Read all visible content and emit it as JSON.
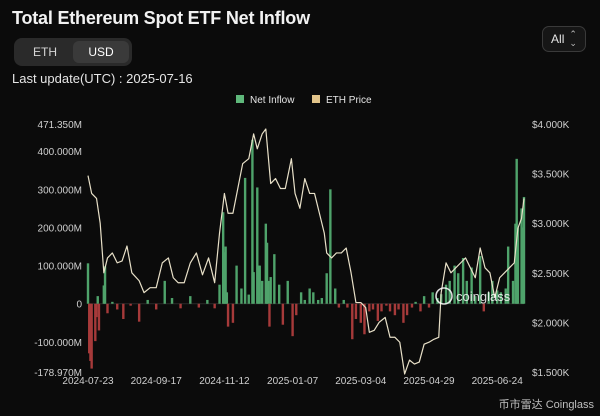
{
  "header": {
    "title": "Total Ethereum Spot ETF Net Inflow",
    "unit_options": [
      "ETH",
      "USD"
    ],
    "active_unit": "USD",
    "range_label": "All",
    "last_update": "Last update(UTC) : 2025-07-16"
  },
  "watermark": {
    "brand": "coinglass",
    "footer": "币市雷达 Coinglass"
  },
  "colors": {
    "inflow": "#4fa36b",
    "outflow": "#a63a3a",
    "price": "#e8e0c8",
    "legend_inflow": "#5fb87b",
    "legend_price": "#e2c48a",
    "axis_text": "#cfcfcf"
  },
  "chart_data": {
    "type": "bar",
    "title": "Total Ethereum Spot ETF Net Inflow",
    "legend": [
      "Net Inflow",
      "ETH Price"
    ],
    "legend_position": "top-right",
    "x_tick_labels": [
      "2024-07-23",
      "2024-09-17",
      "2024-11-12",
      "2025-01-07",
      "2025-03-04",
      "2025-04-29",
      "2025-06-24"
    ],
    "y_left_tick_labels": [
      "471.350M",
      "400.000M",
      "300.000M",
      "200.000M",
      "100.000M",
      "0",
      "-100.000M",
      "-178.970M"
    ],
    "y_left_range": [
      -178970000,
      471350000
    ],
    "y_right_tick_labels": [
      "$4.000K",
      "$3.500K",
      "$3.000K",
      "$2.500K",
      "$2.000K",
      "$1.500K"
    ],
    "y_right_range": [
      1500,
      4000
    ],
    "x_range": [
      "2024-07-23",
      "2025-07-16"
    ],
    "series": [
      {
        "name": "Net Inflow",
        "axis": "left",
        "points": [
          [
            "2024-07-23",
            106000000
          ],
          [
            "2024-07-24",
            -130000000
          ],
          [
            "2024-07-25",
            -150000000
          ],
          [
            "2024-07-26",
            -170000000
          ],
          [
            "2024-07-29",
            -98000000
          ],
          [
            "2024-07-30",
            -35000000
          ],
          [
            "2024-07-31",
            20000000
          ],
          [
            "2024-08-01",
            -70000000
          ],
          [
            "2024-08-05",
            48000000
          ],
          [
            "2024-08-06",
            98000000
          ],
          [
            "2024-08-08",
            -25000000
          ],
          [
            "2024-08-12",
            5000000
          ],
          [
            "2024-08-16",
            -15000000
          ],
          [
            "2024-08-21",
            -40000000
          ],
          [
            "2024-08-27",
            -5000000
          ],
          [
            "2024-09-03",
            -47000000
          ],
          [
            "2024-09-10",
            10000000
          ],
          [
            "2024-09-17",
            -15000000
          ],
          [
            "2024-09-24",
            60000000
          ],
          [
            "2024-09-30",
            15000000
          ],
          [
            "2024-10-07",
            -12000000
          ],
          [
            "2024-10-15",
            20000000
          ],
          [
            "2024-10-22",
            -10000000
          ],
          [
            "2024-10-29",
            10000000
          ],
          [
            "2024-11-04",
            -12000000
          ],
          [
            "2024-11-08",
            50000000
          ],
          [
            "2024-11-11",
            240000000
          ],
          [
            "2024-11-12",
            135000000
          ],
          [
            "2024-11-13",
            150000000
          ],
          [
            "2024-11-14",
            30000000
          ],
          [
            "2024-11-15",
            -60000000
          ],
          [
            "2024-11-19",
            -50000000
          ],
          [
            "2024-11-22",
            100000000
          ],
          [
            "2024-11-26",
            40000000
          ],
          [
            "2024-11-29",
            330000000
          ],
          [
            "2024-12-02",
            24000000
          ],
          [
            "2024-12-05",
            430000000
          ],
          [
            "2024-12-06",
            83000000
          ],
          [
            "2024-12-09",
            305000000
          ],
          [
            "2024-12-10",
            100000000
          ],
          [
            "2024-12-11",
            100000000
          ],
          [
            "2024-12-13",
            60000000
          ],
          [
            "2024-12-16",
            210000000
          ],
          [
            "2024-12-17",
            160000000
          ],
          [
            "2024-12-18",
            60000000
          ],
          [
            "2024-12-19",
            -60000000
          ],
          [
            "2024-12-20",
            70000000
          ],
          [
            "2024-12-23",
            130000000
          ],
          [
            "2024-12-27",
            50000000
          ],
          [
            "2024-12-30",
            -55000000
          ],
          [
            "2025-01-03",
            60000000
          ],
          [
            "2025-01-07",
            -85000000
          ],
          [
            "2025-01-10",
            -30000000
          ],
          [
            "2025-01-14",
            30000000
          ],
          [
            "2025-01-17",
            10000000
          ],
          [
            "2025-01-21",
            40000000
          ],
          [
            "2025-01-24",
            30000000
          ],
          [
            "2025-01-28",
            10000000
          ],
          [
            "2025-01-31",
            15000000
          ],
          [
            "2025-02-04",
            80000000
          ],
          [
            "2025-02-07",
            300000000
          ],
          [
            "2025-02-11",
            40000000
          ],
          [
            "2025-02-14",
            -10000000
          ],
          [
            "2025-02-18",
            10000000
          ],
          [
            "2025-02-21",
            -10000000
          ],
          [
            "2025-02-25",
            -93000000
          ],
          [
            "2025-02-28",
            -40000000
          ],
          [
            "2025-03-04",
            -50000000
          ],
          [
            "2025-03-07",
            -80000000
          ],
          [
            "2025-03-11",
            -20000000
          ],
          [
            "2025-03-14",
            -15000000
          ],
          [
            "2025-03-18",
            -45000000
          ],
          [
            "2025-03-21",
            -20000000
          ],
          [
            "2025-03-25",
            -5000000
          ],
          [
            "2025-03-28",
            -20000000
          ],
          [
            "2025-04-01",
            -30000000
          ],
          [
            "2025-04-04",
            -15000000
          ],
          [
            "2025-04-08",
            -50000000
          ],
          [
            "2025-04-11",
            -30000000
          ],
          [
            "2025-04-15",
            -10000000
          ],
          [
            "2025-04-18",
            5000000
          ],
          [
            "2025-04-22",
            -20000000
          ],
          [
            "2025-04-25",
            20000000
          ],
          [
            "2025-04-29",
            -10000000
          ],
          [
            "2025-05-02",
            30000000
          ],
          [
            "2025-05-06",
            15000000
          ],
          [
            "2025-05-09",
            25000000
          ],
          [
            "2025-05-13",
            50000000
          ],
          [
            "2025-05-16",
            60000000
          ],
          [
            "2025-05-20",
            100000000
          ],
          [
            "2025-05-23",
            80000000
          ],
          [
            "2025-05-27",
            120000000
          ],
          [
            "2025-05-30",
            60000000
          ],
          [
            "2025-06-03",
            95000000
          ],
          [
            "2025-06-06",
            20000000
          ],
          [
            "2025-06-10",
            125000000
          ],
          [
            "2025-06-13",
            -20000000
          ],
          [
            "2025-06-17",
            30000000
          ],
          [
            "2025-06-20",
            60000000
          ],
          [
            "2025-06-24",
            35000000
          ],
          [
            "2025-06-27",
            30000000
          ],
          [
            "2025-07-01",
            40000000
          ],
          [
            "2025-07-03",
            150000000
          ],
          [
            "2025-07-07",
            60000000
          ],
          [
            "2025-07-09",
            210000000
          ],
          [
            "2025-07-10",
            380000000
          ],
          [
            "2025-07-11",
            200000000
          ],
          [
            "2025-07-14",
            250000000
          ],
          [
            "2025-07-15",
            200000000
          ],
          [
            "2025-07-16",
            280000000
          ]
        ]
      },
      {
        "name": "ETH Price",
        "axis": "right",
        "points": [
          [
            "2024-07-23",
            3480
          ],
          [
            "2024-07-26",
            3300
          ],
          [
            "2024-07-30",
            3250
          ],
          [
            "2024-08-02",
            3000
          ],
          [
            "2024-08-05",
            2500
          ],
          [
            "2024-08-08",
            2650
          ],
          [
            "2024-08-12",
            2700
          ],
          [
            "2024-08-16",
            2600
          ],
          [
            "2024-08-20",
            2620
          ],
          [
            "2024-08-24",
            2770
          ],
          [
            "2024-08-28",
            2500
          ],
          [
            "2024-09-03",
            2420
          ],
          [
            "2024-09-07",
            2300
          ],
          [
            "2024-09-12",
            2350
          ],
          [
            "2024-09-17",
            2350
          ],
          [
            "2024-09-22",
            2600
          ],
          [
            "2024-09-27",
            2650
          ],
          [
            "2024-10-01",
            2450
          ],
          [
            "2024-10-05",
            2400
          ],
          [
            "2024-10-10",
            2400
          ],
          [
            "2024-10-15",
            2600
          ],
          [
            "2024-10-20",
            2700
          ],
          [
            "2024-10-25",
            2480
          ],
          [
            "2024-10-30",
            2650
          ],
          [
            "2024-11-04",
            2400
          ],
          [
            "2024-11-08",
            2900
          ],
          [
            "2024-11-12",
            3300
          ],
          [
            "2024-11-15",
            3100
          ],
          [
            "2024-11-19",
            3100
          ],
          [
            "2024-11-23",
            3350
          ],
          [
            "2024-11-27",
            3600
          ],
          [
            "2024-12-02",
            3650
          ],
          [
            "2024-12-06",
            3900
          ],
          [
            "2024-12-09",
            3750
          ],
          [
            "2024-12-13",
            3900
          ],
          [
            "2024-12-16",
            3950
          ],
          [
            "2024-12-20",
            3400
          ],
          [
            "2024-12-24",
            3450
          ],
          [
            "2024-12-28",
            3350
          ],
          [
            "2025-01-01",
            3350
          ],
          [
            "2025-01-06",
            3650
          ],
          [
            "2025-01-09",
            3300
          ],
          [
            "2025-01-13",
            3150
          ],
          [
            "2025-01-17",
            3450
          ],
          [
            "2025-01-21",
            3300
          ],
          [
            "2025-01-25",
            3300
          ],
          [
            "2025-01-29",
            3100
          ],
          [
            "2025-02-02",
            2900
          ],
          [
            "2025-02-04",
            2700
          ],
          [
            "2025-02-08",
            2650
          ],
          [
            "2025-02-12",
            2700
          ],
          [
            "2025-02-16",
            2700
          ],
          [
            "2025-02-20",
            2750
          ],
          [
            "2025-02-24",
            2500
          ],
          [
            "2025-02-28",
            2200
          ],
          [
            "2025-03-04",
            2200
          ],
          [
            "2025-03-08",
            2150
          ],
          [
            "2025-03-11",
            1900
          ],
          [
            "2025-03-15",
            1920
          ],
          [
            "2025-03-19",
            2000
          ],
          [
            "2025-03-24",
            2050
          ],
          [
            "2025-03-28",
            1850
          ],
          [
            "2025-04-01",
            1850
          ],
          [
            "2025-04-05",
            1800
          ],
          [
            "2025-04-09",
            1480
          ],
          [
            "2025-04-13",
            1620
          ],
          [
            "2025-04-17",
            1580
          ],
          [
            "2025-04-21",
            1600
          ],
          [
            "2025-04-25",
            1780
          ],
          [
            "2025-04-29",
            1800
          ],
          [
            "2025-05-03",
            1830
          ],
          [
            "2025-05-07",
            1850
          ],
          [
            "2025-05-09",
            2300
          ],
          [
            "2025-05-13",
            2600
          ],
          [
            "2025-05-17",
            2500
          ],
          [
            "2025-05-21",
            2550
          ],
          [
            "2025-05-25",
            2600
          ],
          [
            "2025-05-29",
            2650
          ],
          [
            "2025-06-02",
            2550
          ],
          [
            "2025-06-06",
            2450
          ],
          [
            "2025-06-10",
            2750
          ],
          [
            "2025-06-14",
            2550
          ],
          [
            "2025-06-18",
            2500
          ],
          [
            "2025-06-22",
            2250
          ],
          [
            "2025-06-26",
            2450
          ],
          [
            "2025-06-30",
            2500
          ],
          [
            "2025-07-04",
            2550
          ],
          [
            "2025-07-08",
            2600
          ],
          [
            "2025-07-11",
            2950
          ],
          [
            "2025-07-14",
            3050
          ],
          [
            "2025-07-16",
            3250
          ]
        ]
      }
    ]
  }
}
